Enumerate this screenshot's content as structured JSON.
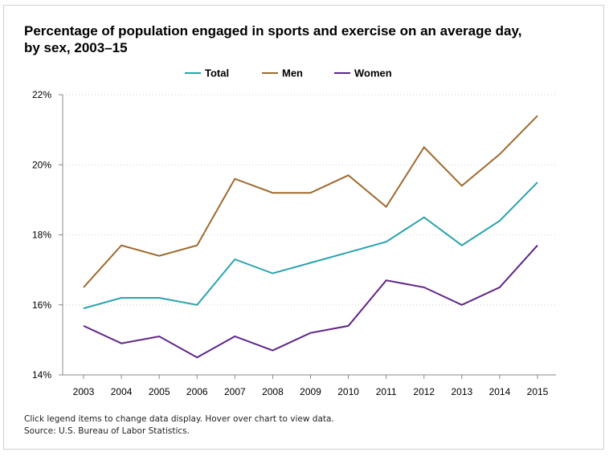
{
  "chart_data": {
    "type": "line",
    "title_lines": [
      "Percentage of population engaged in sports and exercise on an average day,",
      "by sex, 2003–15"
    ],
    "x": [
      "2003",
      "2004",
      "2005",
      "2006",
      "2007",
      "2008",
      "2009",
      "2010",
      "2011",
      "2012",
      "2013",
      "2014",
      "2015"
    ],
    "series": [
      {
        "name": "Total",
        "color": "#2aa3ad",
        "values": [
          15.9,
          16.2,
          16.2,
          16.0,
          17.3,
          16.9,
          17.2,
          17.5,
          17.8,
          18.5,
          17.7,
          18.4,
          19.5
        ]
      },
      {
        "name": "Men",
        "color": "#a06a2e",
        "values": [
          16.5,
          17.7,
          17.4,
          17.7,
          19.6,
          19.2,
          19.2,
          19.7,
          18.8,
          20.5,
          19.4,
          20.3,
          21.4
        ]
      },
      {
        "name": "Women",
        "color": "#5f2487",
        "values": [
          15.4,
          14.9,
          15.1,
          14.5,
          15.1,
          14.7,
          15.2,
          15.4,
          16.7,
          16.5,
          16.0,
          16.5,
          17.7
        ]
      }
    ],
    "ylim": [
      14,
      22
    ],
    "yticks": [
      14,
      16,
      18,
      20,
      22
    ],
    "ytick_labels": [
      "14%",
      "16%",
      "18%",
      "20%",
      "22%"
    ],
    "xlabel": "",
    "ylabel": "",
    "grid": true,
    "legend_position": "top-center"
  },
  "footer": {
    "note": "Click legend items to change data display. Hover over chart to view data.",
    "source": "Source: U.S. Bureau of Labor Statistics."
  }
}
